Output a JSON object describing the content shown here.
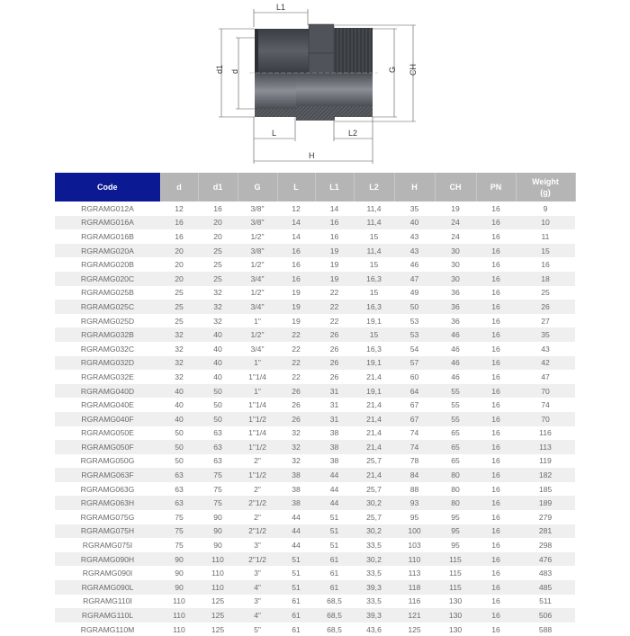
{
  "drawing": {
    "labels": {
      "L1": "L1",
      "d1": "d1",
      "d": "d",
      "G": "G",
      "CH": "CH",
      "L": "L",
      "L2": "L2",
      "H": "H"
    }
  },
  "colors": {
    "header_code": "#0b1a92",
    "header": "#b5b5b5",
    "row_alt": "#efefef"
  },
  "table": {
    "headers": [
      "Code",
      "d",
      "d1",
      "G",
      "L",
      "L1",
      "L2",
      "H",
      "CH",
      "PN",
      "Weight (g)"
    ],
    "rows": [
      [
        "RGRAMG012A",
        "12",
        "16",
        "3/8\"",
        "12",
        "14",
        "11,4",
        "35",
        "19",
        "16",
        "9"
      ],
      [
        "RGRAMG016A",
        "16",
        "20",
        "3/8\"",
        "14",
        "16",
        "11,4",
        "40",
        "24",
        "16",
        "10"
      ],
      [
        "RGRAMG016B",
        "16",
        "20",
        "1/2\"",
        "14",
        "16",
        "15",
        "43",
        "24",
        "16",
        "11"
      ],
      [
        "RGRAMG020A",
        "20",
        "25",
        "3/8\"",
        "16",
        "19",
        "11,4",
        "43",
        "30",
        "16",
        "15"
      ],
      [
        "RGRAMG020B",
        "20",
        "25",
        "1/2\"",
        "16",
        "19",
        "15",
        "46",
        "30",
        "16",
        "16"
      ],
      [
        "RGRAMG020C",
        "20",
        "25",
        "3/4\"",
        "16",
        "19",
        "16,3",
        "47",
        "30",
        "16",
        "18"
      ],
      [
        "RGRAMG025B",
        "25",
        "32",
        "1/2\"",
        "19",
        "22",
        "15",
        "49",
        "36",
        "16",
        "25"
      ],
      [
        "RGRAMG025C",
        "25",
        "32",
        "3/4\"",
        "19",
        "22",
        "16,3",
        "50",
        "36",
        "16",
        "26"
      ],
      [
        "RGRAMG025D",
        "25",
        "32",
        "1\"",
        "19",
        "22",
        "19,1",
        "53",
        "36",
        "16",
        "27"
      ],
      [
        "RGRAMG032B",
        "32",
        "40",
        "1/2\"",
        "22",
        "26",
        "15",
        "53",
        "46",
        "16",
        "35"
      ],
      [
        "RGRAMG032C",
        "32",
        "40",
        "3/4\"",
        "22",
        "26",
        "16,3",
        "54",
        "46",
        "16",
        "43"
      ],
      [
        "RGRAMG032D",
        "32",
        "40",
        "1\"",
        "22",
        "26",
        "19,1",
        "57",
        "46",
        "16",
        "42"
      ],
      [
        "RGRAMG032E",
        "32",
        "40",
        "1\"1/4",
        "22",
        "26",
        "21,4",
        "60",
        "46",
        "16",
        "47"
      ],
      [
        "RGRAMG040D",
        "40",
        "50",
        "1\"",
        "26",
        "31",
        "19,1",
        "64",
        "55",
        "16",
        "70"
      ],
      [
        "RGRAMG040E",
        "40",
        "50",
        "1\"1/4",
        "26",
        "31",
        "21,4",
        "67",
        "55",
        "16",
        "74"
      ],
      [
        "RGRAMG040F",
        "40",
        "50",
        "1\"1/2",
        "26",
        "31",
        "21,4",
        "67",
        "55",
        "16",
        "70"
      ],
      [
        "RGRAMG050E",
        "50",
        "63",
        "1\"1/4",
        "32",
        "38",
        "21,4",
        "74",
        "65",
        "16",
        "116"
      ],
      [
        "RGRAMG050F",
        "50",
        "63",
        "1\"1/2",
        "32",
        "38",
        "21,4",
        "74",
        "65",
        "16",
        "113"
      ],
      [
        "RGRAMG050G",
        "50",
        "63",
        "2\"",
        "32",
        "38",
        "25,7",
        "78",
        "65",
        "16",
        "119"
      ],
      [
        "RGRAMG063F",
        "63",
        "75",
        "1\"1/2",
        "38",
        "44",
        "21,4",
        "84",
        "80",
        "16",
        "182"
      ],
      [
        "RGRAMG063G",
        "63",
        "75",
        "2\"",
        "38",
        "44",
        "25,7",
        "88",
        "80",
        "16",
        "185"
      ],
      [
        "RGRAMG063H",
        "63",
        "75",
        "2\"1/2",
        "38",
        "44",
        "30,2",
        "93",
        "80",
        "16",
        "189"
      ],
      [
        "RGRAMG075G",
        "75",
        "90",
        "2\"",
        "44",
        "51",
        "25,7",
        "95",
        "95",
        "16",
        "279"
      ],
      [
        "RGRAMG075H",
        "75",
        "90",
        "2\"1/2",
        "44",
        "51",
        "30,2",
        "100",
        "95",
        "16",
        "281"
      ],
      [
        "RGRAMG075I",
        "75",
        "90",
        "3\"",
        "44",
        "51",
        "33,5",
        "103",
        "95",
        "16",
        "298"
      ],
      [
        "RGRAMG090H",
        "90",
        "110",
        "2\"1/2",
        "51",
        "61",
        "30,2",
        "110",
        "115",
        "16",
        "476"
      ],
      [
        "RGRAMG090I",
        "90",
        "110",
        "3\"",
        "51",
        "61",
        "33,5",
        "113",
        "115",
        "16",
        "483"
      ],
      [
        "RGRAMG090L",
        "90",
        "110",
        "4\"",
        "51",
        "61",
        "39,3",
        "118",
        "115",
        "16",
        "485"
      ],
      [
        "RGRAMG110I",
        "110",
        "125",
        "3\"",
        "61",
        "68,5",
        "33,5",
        "116",
        "130",
        "16",
        "511"
      ],
      [
        "RGRAMG110L",
        "110",
        "125",
        "4\"",
        "61",
        "68,5",
        "39,3",
        "121",
        "130",
        "16",
        "506"
      ],
      [
        "RGRAMG110M",
        "110",
        "125",
        "5\"",
        "61",
        "68,5",
        "43,6",
        "125",
        "130",
        "16",
        "588"
      ]
    ]
  }
}
